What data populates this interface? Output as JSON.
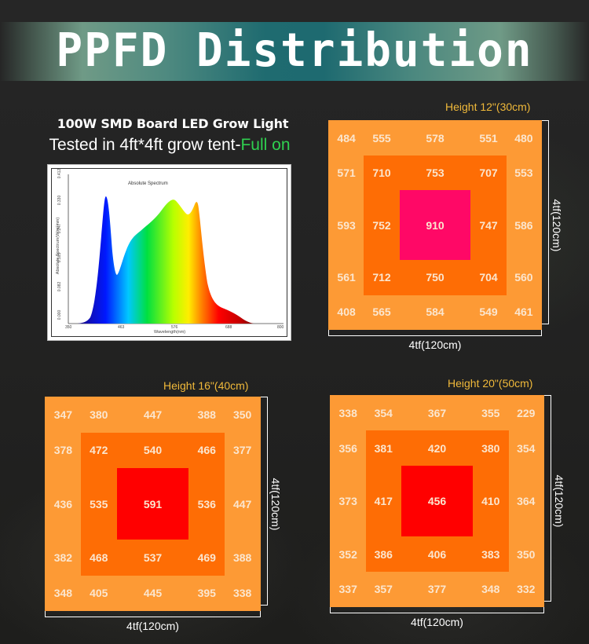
{
  "header": {
    "title": "PPFD Distribution",
    "subtitle_line1": "100W SMD Board LED Grow Light",
    "subtitle_line2_prefix": "Tested in 4ft*4ft grow tent-",
    "subtitle_line2_highlight": "Full on"
  },
  "colors": {
    "title_band_center": "#1e6a70",
    "title_band_edge": "#6f9a86",
    "highlight_green": "#2fd04f",
    "height_label": "#f0b93a",
    "outer_ring": "#fd9a35",
    "middle_ring": "#fe6d05",
    "center_12in": "#ff0866",
    "center_16in": "#ff0000",
    "center_20in": "#ff0000"
  },
  "chart_data": [
    {
      "type": "area",
      "title": "Absolute Spectrum",
      "xlabel": "Wavelength(nm)",
      "ylabel": "Absolute Spectrum(W/m²/nm)",
      "x_ticks": [
        "350",
        "463",
        "576",
        "688",
        "800"
      ],
      "y_ticks": [
        "0.000",
        "0.082",
        "0.165",
        "0.247",
        "0.330",
        "0.412"
      ],
      "xlim": [
        350,
        800
      ],
      "ylim": [
        0,
        0.412
      ],
      "x": [
        380,
        400,
        420,
        440,
        450,
        460,
        470,
        480,
        500,
        520,
        540,
        560,
        580,
        590,
        600,
        620,
        640,
        650,
        660,
        670,
        690,
        710,
        740,
        770,
        780
      ],
      "values": [
        0.0,
        0.005,
        0.05,
        0.25,
        0.34,
        0.2,
        0.14,
        0.11,
        0.18,
        0.235,
        0.26,
        0.29,
        0.315,
        0.31,
        0.3,
        0.285,
        0.305,
        0.26,
        0.2,
        0.12,
        0.06,
        0.035,
        0.02,
        0.005,
        0.0
      ],
      "annotations": [
        "blue peak ~450nm",
        "broad peak ~590nm",
        "red peak ~660nm"
      ],
      "grid": false,
      "legend": "none"
    },
    {
      "type": "heatmap",
      "title": "Height 12\"(30cm)",
      "xlabel": "4tf(120cm)",
      "ylabel": "4tf(120cm)",
      "rows": [
        [
          484,
          555,
          578,
          551,
          480
        ],
        [
          571,
          710,
          753,
          707,
          553
        ],
        [
          593,
          752,
          910,
          747,
          586
        ],
        [
          561,
          712,
          750,
          704,
          560
        ],
        [
          408,
          565,
          584,
          549,
          461
        ]
      ]
    },
    {
      "type": "heatmap",
      "title": "Height 16\"(40cm)",
      "xlabel": "4tf(120cm)",
      "ylabel": "4tf(120cm)",
      "rows": [
        [
          347,
          380,
          447,
          388,
          350
        ],
        [
          378,
          472,
          540,
          466,
          377
        ],
        [
          436,
          535,
          591,
          536,
          447
        ],
        [
          382,
          468,
          537,
          469,
          388
        ],
        [
          348,
          405,
          445,
          395,
          338
        ]
      ]
    },
    {
      "type": "heatmap",
      "title": "Height 20\"(50cm)",
      "xlabel": "4tf(120cm)",
      "ylabel": "4tf(120cm)",
      "rows": [
        [
          338,
          354,
          367,
          355,
          229
        ],
        [
          356,
          381,
          420,
          380,
          354
        ],
        [
          373,
          417,
          456,
          410,
          364
        ],
        [
          352,
          386,
          406,
          383,
          350
        ],
        [
          337,
          357,
          377,
          348,
          332
        ]
      ]
    }
  ],
  "spectrum": {
    "title": "Absolute Spectrum",
    "xlabel": "Wavelength(nm)",
    "ylabel": "Absolute Spectrum(W/m²/nm)",
    "x_ticks": [
      "350",
      "463",
      "576",
      "688",
      "800"
    ],
    "y_ticks": [
      "0.000",
      "0.082",
      "0.165",
      "0.247",
      "0.330",
      "0.412"
    ]
  },
  "panels": [
    {
      "height_label": "Height 12\"(30cm)",
      "width_label": "4tf(120cm)",
      "depth_label": "4tf(120cm)",
      "center_color": "#ff0866",
      "rows": [
        [
          "484",
          "555",
          "578",
          "551",
          "480"
        ],
        [
          "571",
          "710",
          "753",
          "707",
          "553"
        ],
        [
          "593",
          "752",
          "910",
          "747",
          "586"
        ],
        [
          "561",
          "712",
          "750",
          "704",
          "560"
        ],
        [
          "408",
          "565",
          "584",
          "549",
          "461"
        ]
      ]
    },
    {
      "height_label": "Height 16\"(40cm)",
      "width_label": "4tf(120cm)",
      "depth_label": "4tf(120cm)",
      "center_color": "#ff0000",
      "rows": [
        [
          "347",
          "380",
          "447",
          "388",
          "350"
        ],
        [
          "378",
          "472",
          "540",
          "466",
          "377"
        ],
        [
          "436",
          "535",
          "591",
          "536",
          "447"
        ],
        [
          "382",
          "468",
          "537",
          "469",
          "388"
        ],
        [
          "348",
          "405",
          "445",
          "395",
          "338"
        ]
      ]
    },
    {
      "height_label": "Height 20\"(50cm)",
      "width_label": "4tf(120cm)",
      "depth_label": "4tf(120cm)",
      "center_color": "#ff0000",
      "rows": [
        [
          "338",
          "354",
          "367",
          "355",
          "229"
        ],
        [
          "356",
          "381",
          "420",
          "380",
          "354"
        ],
        [
          "373",
          "417",
          "456",
          "410",
          "364"
        ],
        [
          "352",
          "386",
          "406",
          "383",
          "350"
        ],
        [
          "337",
          "357",
          "377",
          "348",
          "332"
        ]
      ]
    }
  ]
}
